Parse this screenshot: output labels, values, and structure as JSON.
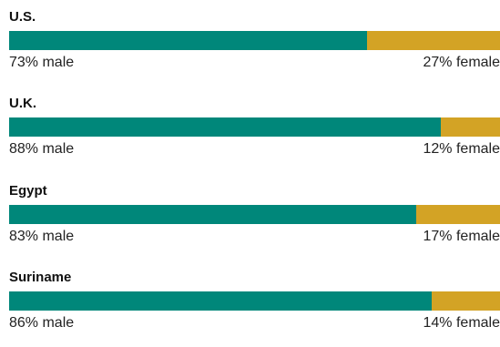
{
  "chart_data": {
    "type": "bar",
    "stacked": true,
    "orientation": "horizontal",
    "categories": [
      "U.S.",
      "U.K.",
      "Egypt",
      "Suriname"
    ],
    "series": [
      {
        "name": "male",
        "values": [
          73,
          88,
          83,
          86
        ]
      },
      {
        "name": "female",
        "values": [
          27,
          12,
          17,
          14
        ]
      }
    ],
    "labels": {
      "male": [
        "73% male",
        "88% male",
        "83% male",
        "86% male"
      ],
      "female": [
        "27% female",
        "12% female",
        "17% female",
        "14% female"
      ]
    },
    "xlim": [
      0,
      100
    ],
    "grid": false,
    "colors": {
      "male": "#00877a",
      "female": "#d3a325"
    }
  }
}
